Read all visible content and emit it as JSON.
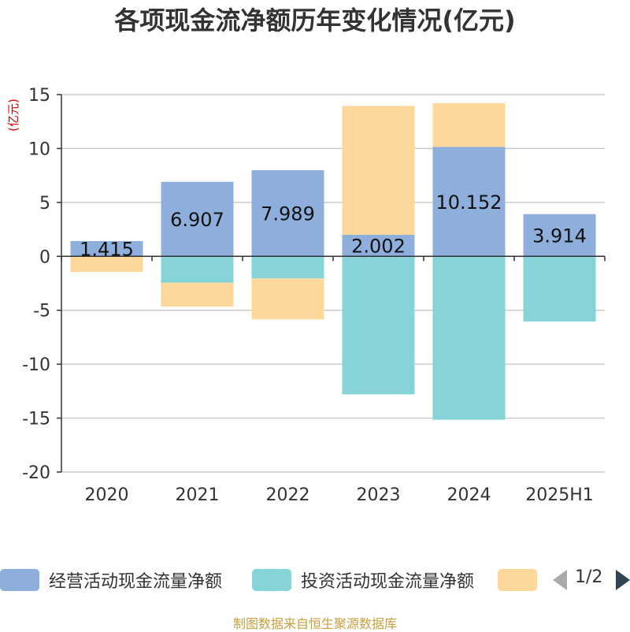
{
  "title": "各项现金流净额历年变化情况(亿元)",
  "unit_label": "(亿元)",
  "colors": {
    "operating": "#8eaedb",
    "investing": "#86d4d8",
    "financing": "#fed89a",
    "grid": "#cccccc",
    "axis": "#333333"
  },
  "chart_data": {
    "type": "bar",
    "stacked": true,
    "categories": [
      "2020",
      "2021",
      "2022",
      "2023",
      "2024",
      "2025H1"
    ],
    "ylim": [
      -20,
      15
    ],
    "yticks": [
      15,
      10,
      5,
      0,
      -5,
      -10,
      -15,
      -20
    ],
    "grid": true,
    "legend_position": "bottom",
    "series": [
      {
        "name": "经营活动现金流量净额",
        "values": [
          1.415,
          6.907,
          7.989,
          2.002,
          10.152,
          3.914
        ],
        "show_labels": true
      },
      {
        "name": "投资活动现金流量净额",
        "values": [
          0,
          -2.45,
          -2.05,
          -12.8,
          -15.15,
          -6.05
        ],
        "show_labels": false
      },
      {
        "name": "",
        "values": [
          -1.45,
          -2.2,
          -3.8,
          11.95,
          4.05,
          0
        ],
        "show_labels": false
      }
    ]
  },
  "legend": {
    "items": [
      "经营活动现金流量净额",
      "投资活动现金流量净额",
      ""
    ],
    "page_indicator": "1/2"
  },
  "source_note": "制图数据来自恒生聚源数据库"
}
